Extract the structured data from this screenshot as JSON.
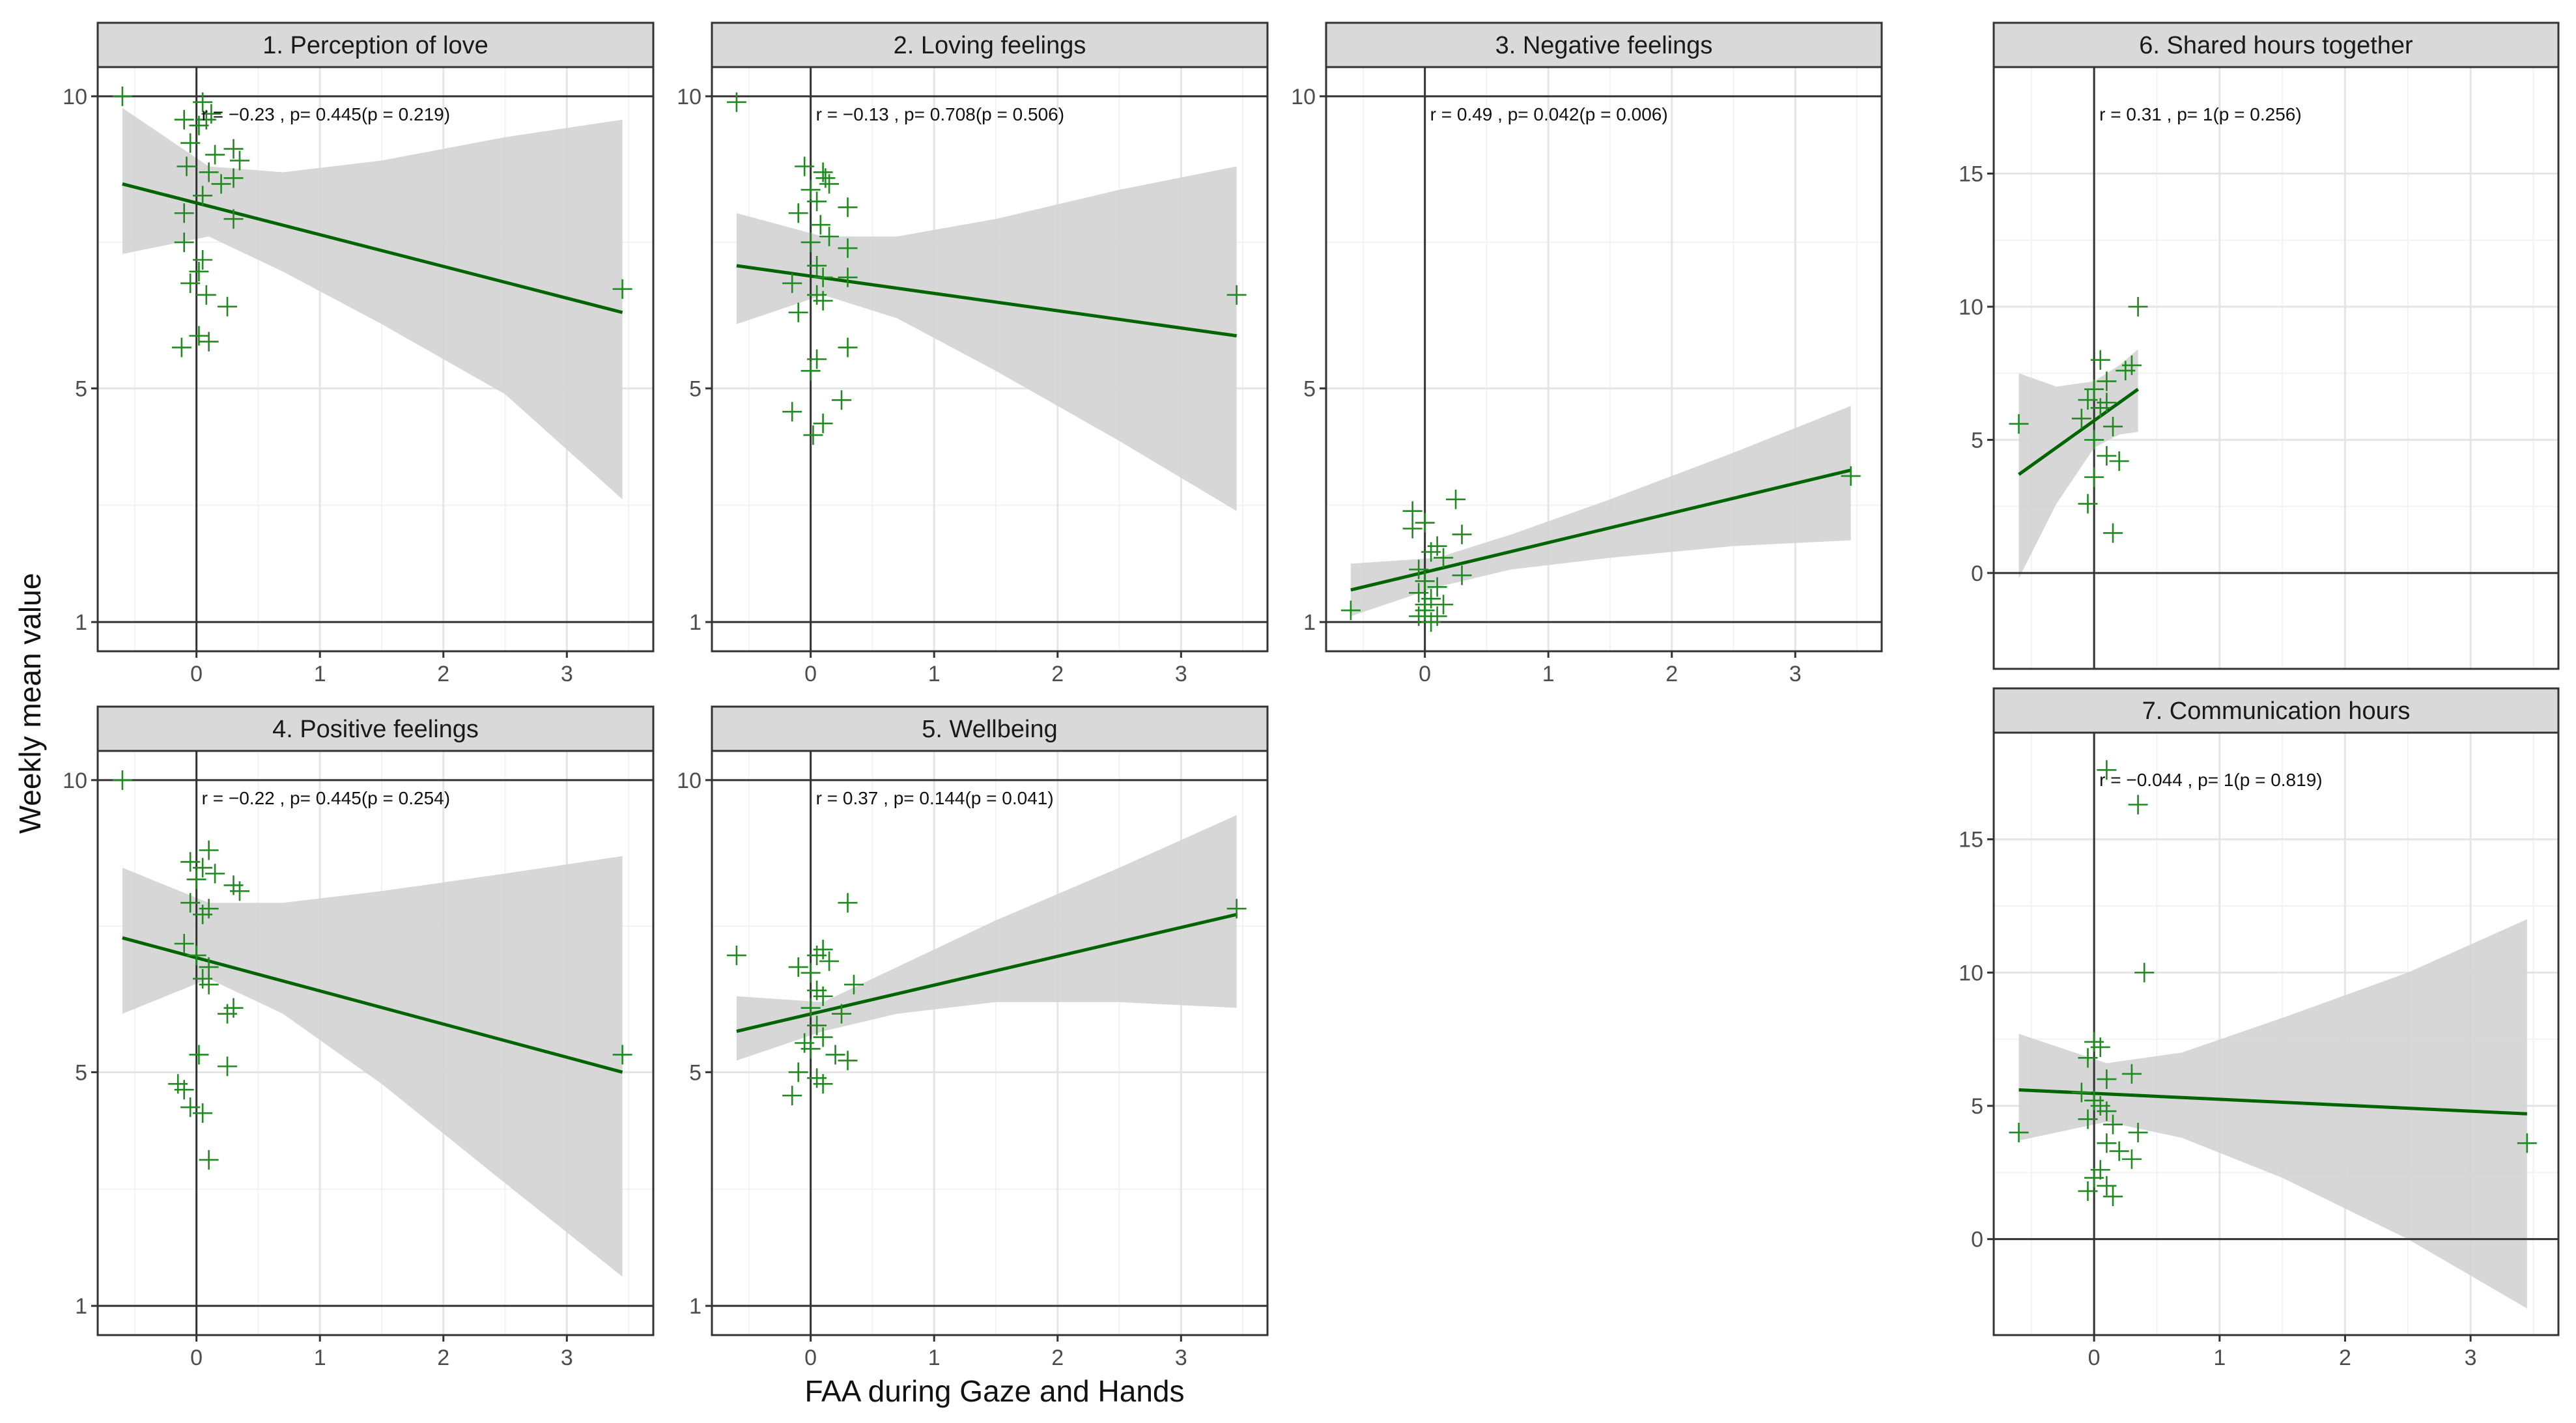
{
  "chart_data": {
    "type": "scatter",
    "xlabel": "FAA during Gaze and Hands",
    "ylabel": "Weekly mean value",
    "colors": {
      "points": "#1f8a1f",
      "line": "#006400",
      "ribbon": "#d3d3d3",
      "strip": "#d9d9d9",
      "ref_line": "#333333"
    },
    "panels": [
      {
        "title": "1. Perception of love",
        "annotation": "r = −0.23 , p= 0.445(p = 0.219)",
        "xlim": [
          -0.8,
          3.7
        ],
        "ylim": [
          0.5,
          10.5
        ],
        "xticks": [
          0,
          1,
          2,
          3
        ],
        "yticks": [
          1,
          5,
          10
        ],
        "hline": 1,
        "hline_top": 10,
        "line": {
          "x": [
            -0.6,
            3.45
          ],
          "y": [
            8.5,
            6.3
          ]
        },
        "ribbon_upper": [
          [
            -0.6,
            9.8
          ],
          [
            0.1,
            8.8
          ],
          [
            0.7,
            8.7
          ],
          [
            1.5,
            8.9
          ],
          [
            2.5,
            9.3
          ],
          [
            3.45,
            9.6
          ]
        ],
        "ribbon_lower": [
          [
            -0.6,
            7.3
          ],
          [
            0.1,
            7.6
          ],
          [
            0.7,
            7.0
          ],
          [
            1.5,
            6.1
          ],
          [
            2.5,
            4.9
          ],
          [
            3.45,
            3.1
          ]
        ],
        "points": [
          [
            -0.6,
            10.0
          ],
          [
            -0.1,
            9.6
          ],
          [
            0.02,
            9.5
          ],
          [
            0.05,
            9.9
          ],
          [
            0.08,
            9.6
          ],
          [
            0.12,
            9.7
          ],
          [
            -0.05,
            9.2
          ],
          [
            0.15,
            9.0
          ],
          [
            0.3,
            9.1
          ],
          [
            0.35,
            8.9
          ],
          [
            -0.08,
            8.8
          ],
          [
            0.1,
            8.7
          ],
          [
            0.2,
            8.5
          ],
          [
            0.3,
            8.6
          ],
          [
            0.05,
            8.3
          ],
          [
            -0.1,
            8.0
          ],
          [
            0.3,
            7.9
          ],
          [
            -0.1,
            7.5
          ],
          [
            0.05,
            7.2
          ],
          [
            0.02,
            7.0
          ],
          [
            -0.05,
            6.8
          ],
          [
            0.08,
            6.6
          ],
          [
            0.25,
            6.4
          ],
          [
            0.02,
            5.9
          ],
          [
            0.1,
            5.8
          ],
          [
            -0.12,
            5.7
          ],
          [
            3.45,
            6.7
          ]
        ]
      },
      {
        "title": "2. Loving feelings",
        "annotation": "r = −0.13 , p= 0.708(p = 0.506)",
        "xlim": [
          -0.8,
          3.7
        ],
        "ylim": [
          0.5,
          10.5
        ],
        "xticks": [
          0,
          1,
          2,
          3
        ],
        "yticks": [
          1,
          5,
          10
        ],
        "hline": 1,
        "hline_top": 10,
        "line": {
          "x": [
            -0.6,
            3.45
          ],
          "y": [
            7.1,
            5.9
          ]
        },
        "ribbon_upper": [
          [
            -0.6,
            8.0
          ],
          [
            0.1,
            7.6
          ],
          [
            0.7,
            7.6
          ],
          [
            1.5,
            7.9
          ],
          [
            2.5,
            8.4
          ],
          [
            3.45,
            8.8
          ]
        ],
        "ribbon_lower": [
          [
            -0.6,
            6.1
          ],
          [
            0.1,
            6.6
          ],
          [
            0.7,
            6.2
          ],
          [
            1.5,
            5.3
          ],
          [
            2.5,
            4.1
          ],
          [
            3.45,
            2.9
          ]
        ],
        "points": [
          [
            -0.6,
            9.9
          ],
          [
            -0.05,
            8.8
          ],
          [
            0.1,
            8.7
          ],
          [
            0.12,
            8.6
          ],
          [
            0.0,
            8.4
          ],
          [
            0.15,
            8.5
          ],
          [
            0.05,
            8.2
          ],
          [
            -0.1,
            8.0
          ],
          [
            0.3,
            8.1
          ],
          [
            0.08,
            7.8
          ],
          [
            0.15,
            7.6
          ],
          [
            0.0,
            7.5
          ],
          [
            0.3,
            7.4
          ],
          [
            0.05,
            7.1
          ],
          [
            0.1,
            6.9
          ],
          [
            -0.15,
            6.8
          ],
          [
            0.3,
            6.9
          ],
          [
            0.05,
            6.6
          ],
          [
            0.1,
            6.5
          ],
          [
            -0.1,
            6.3
          ],
          [
            0.3,
            5.7
          ],
          [
            0.05,
            5.5
          ],
          [
            0.0,
            5.3
          ],
          [
            -0.15,
            4.6
          ],
          [
            0.25,
            4.8
          ],
          [
            0.1,
            4.4
          ],
          [
            0.02,
            4.2
          ],
          [
            3.45,
            6.6
          ]
        ]
      },
      {
        "title": "3. Negative feelings",
        "annotation": "r = 0.49 , p= 0.042(p = 0.006)",
        "xlim": [
          -0.8,
          3.7
        ],
        "ylim": [
          0.5,
          10.5
        ],
        "xticks": [
          0,
          1,
          2,
          3
        ],
        "yticks": [
          1,
          5,
          10
        ],
        "hline": 1,
        "hline_top": 10,
        "line": {
          "x": [
            -0.6,
            3.45
          ],
          "y": [
            1.55,
            3.6
          ]
        },
        "ribbon_upper": [
          [
            -0.6,
            2.0
          ],
          [
            0.1,
            2.1
          ],
          [
            0.7,
            2.5
          ],
          [
            1.5,
            3.1
          ],
          [
            2.5,
            3.9
          ],
          [
            3.45,
            4.7
          ]
        ],
        "ribbon_lower": [
          [
            -0.6,
            1.1
          ],
          [
            0.1,
            1.6
          ],
          [
            0.7,
            1.9
          ],
          [
            1.5,
            2.1
          ],
          [
            2.5,
            2.3
          ],
          [
            3.45,
            2.4
          ]
        ],
        "points": [
          [
            -0.6,
            1.2
          ],
          [
            -0.1,
            2.9
          ],
          [
            -0.1,
            2.6
          ],
          [
            0.25,
            3.1
          ],
          [
            0.0,
            2.7
          ],
          [
            0.3,
            2.5
          ],
          [
            0.1,
            2.3
          ],
          [
            0.05,
            2.2
          ],
          [
            0.15,
            2.1
          ],
          [
            -0.05,
            1.9
          ],
          [
            0.3,
            1.8
          ],
          [
            0.0,
            1.7
          ],
          [
            0.1,
            1.6
          ],
          [
            -0.05,
            1.5
          ],
          [
            0.05,
            1.4
          ],
          [
            0.15,
            1.3
          ],
          [
            0.0,
            1.2
          ],
          [
            -0.05,
            1.1
          ],
          [
            0.1,
            1.1
          ],
          [
            0.05,
            1.0
          ],
          [
            0.0,
            1.3
          ],
          [
            3.45,
            3.5
          ]
        ]
      },
      {
        "title": "4. Positive feelings",
        "annotation": "r = −0.22 , p= 0.445(p = 0.254)",
        "xlim": [
          -0.8,
          3.7
        ],
        "ylim": [
          0.5,
          10.5
        ],
        "xticks": [
          0,
          1,
          2,
          3
        ],
        "yticks": [
          1,
          5,
          10
        ],
        "hline": 1,
        "hline_top": 10,
        "line": {
          "x": [
            -0.6,
            3.45
          ],
          "y": [
            7.3,
            5.0
          ]
        },
        "ribbon_upper": [
          [
            -0.6,
            8.5
          ],
          [
            0.1,
            7.9
          ],
          [
            0.7,
            7.9
          ],
          [
            1.5,
            8.1
          ],
          [
            2.5,
            8.4
          ],
          [
            3.45,
            8.7
          ]
        ],
        "ribbon_lower": [
          [
            -0.6,
            6.0
          ],
          [
            0.1,
            6.6
          ],
          [
            0.7,
            6.0
          ],
          [
            1.5,
            4.8
          ],
          [
            2.5,
            3.1
          ],
          [
            3.45,
            1.5
          ]
        ],
        "points": [
          [
            -0.6,
            10.0
          ],
          [
            0.1,
            8.8
          ],
          [
            -0.05,
            8.6
          ],
          [
            0.05,
            8.5
          ],
          [
            0.15,
            8.4
          ],
          [
            0.0,
            8.3
          ],
          [
            0.3,
            8.2
          ],
          [
            0.35,
            8.1
          ],
          [
            -0.05,
            7.9
          ],
          [
            0.1,
            7.8
          ],
          [
            0.05,
            7.7
          ],
          [
            -0.1,
            7.2
          ],
          [
            0.0,
            7.0
          ],
          [
            0.1,
            6.8
          ],
          [
            0.05,
            6.6
          ],
          [
            0.1,
            6.5
          ],
          [
            0.3,
            6.1
          ],
          [
            0.25,
            6.0
          ],
          [
            0.02,
            5.3
          ],
          [
            0.25,
            5.1
          ],
          [
            -0.15,
            4.8
          ],
          [
            -0.1,
            4.7
          ],
          [
            -0.05,
            4.4
          ],
          [
            0.05,
            4.3
          ],
          [
            0.1,
            3.5
          ],
          [
            3.45,
            5.3
          ]
        ]
      },
      {
        "title": "5. Wellbeing",
        "annotation": "r = 0.37 , p= 0.144(p = 0.041)",
        "xlim": [
          -0.8,
          3.7
        ],
        "ylim": [
          0.5,
          10.5
        ],
        "xticks": [
          0,
          1,
          2,
          3
        ],
        "yticks": [
          1,
          5,
          10
        ],
        "hline": 1,
        "hline_top": 10,
        "line": {
          "x": [
            -0.6,
            3.45
          ],
          "y": [
            5.7,
            7.7
          ]
        },
        "ribbon_upper": [
          [
            -0.6,
            6.3
          ],
          [
            0.1,
            6.2
          ],
          [
            0.7,
            6.8
          ],
          [
            1.5,
            7.6
          ],
          [
            2.5,
            8.5
          ],
          [
            3.45,
            9.4
          ]
        ],
        "ribbon_lower": [
          [
            -0.6,
            5.2
          ],
          [
            0.1,
            5.7
          ],
          [
            0.7,
            6.0
          ],
          [
            1.5,
            6.2
          ],
          [
            2.5,
            6.2
          ],
          [
            3.45,
            6.1
          ]
        ],
        "points": [
          [
            -0.6,
            7.0
          ],
          [
            0.3,
            7.9
          ],
          [
            0.1,
            7.1
          ],
          [
            0.05,
            7.0
          ],
          [
            0.15,
            6.9
          ],
          [
            -0.1,
            6.8
          ],
          [
            0.0,
            6.7
          ],
          [
            0.35,
            6.5
          ],
          [
            0.05,
            6.4
          ],
          [
            0.1,
            6.3
          ],
          [
            0.0,
            6.1
          ],
          [
            0.25,
            6.0
          ],
          [
            0.05,
            5.8
          ],
          [
            0.1,
            5.6
          ],
          [
            -0.05,
            5.5
          ],
          [
            0.0,
            5.4
          ],
          [
            0.2,
            5.3
          ],
          [
            0.3,
            5.2
          ],
          [
            -0.1,
            5.0
          ],
          [
            0.05,
            4.9
          ],
          [
            -0.15,
            4.6
          ],
          [
            0.1,
            4.8
          ],
          [
            3.45,
            7.8
          ]
        ]
      },
      {
        "title": "6. Shared hours together",
        "annotation": "r = 0.31 , p= 1(p = 0.256)",
        "xlim": [
          -0.8,
          3.7
        ],
        "ylim": [
          -3.6,
          19.0
        ],
        "xticks": [],
        "yticks": [
          0,
          5,
          10,
          15
        ],
        "hline": 0,
        "hline_top": null,
        "line": {
          "x": [
            -0.6,
            0.35
          ],
          "y": [
            3.7,
            6.9
          ]
        },
        "ribbon_upper": [
          [
            -0.6,
            7.5
          ],
          [
            -0.3,
            7.0
          ],
          [
            0.0,
            7.2
          ],
          [
            0.2,
            7.8
          ],
          [
            0.35,
            8.4
          ]
        ],
        "ribbon_lower": [
          [
            -0.6,
            -0.2
          ],
          [
            -0.3,
            2.6
          ],
          [
            0.0,
            4.7
          ],
          [
            0.2,
            5.2
          ],
          [
            0.35,
            5.3
          ]
        ],
        "points": [
          [
            -0.6,
            5.6
          ],
          [
            0.35,
            10.0
          ],
          [
            0.05,
            8.0
          ],
          [
            0.3,
            7.8
          ],
          [
            0.25,
            7.6
          ],
          [
            0.1,
            7.2
          ],
          [
            0.0,
            6.9
          ],
          [
            -0.05,
            6.5
          ],
          [
            0.1,
            6.4
          ],
          [
            0.05,
            6.2
          ],
          [
            -0.1,
            5.8
          ],
          [
            0.15,
            5.5
          ],
          [
            0.0,
            5.0
          ],
          [
            0.1,
            4.4
          ],
          [
            0.2,
            4.2
          ],
          [
            0.0,
            3.6
          ],
          [
            -0.05,
            2.6
          ],
          [
            0.15,
            1.5
          ]
        ]
      },
      {
        "title": "7. Communication hours",
        "annotation": "r = −0.044 , p= 1(p = 0.819)",
        "xlim": [
          -0.8,
          3.7
        ],
        "ylim": [
          -3.6,
          19.0
        ],
        "xticks": [
          0,
          1,
          2,
          3
        ],
        "yticks": [
          0,
          5,
          10,
          15
        ],
        "hline": 0,
        "hline_top": null,
        "line": {
          "x": [
            -0.6,
            3.45
          ],
          "y": [
            5.6,
            4.7
          ]
        },
        "ribbon_upper": [
          [
            -0.6,
            7.7
          ],
          [
            0.1,
            6.6
          ],
          [
            0.7,
            7.0
          ],
          [
            1.5,
            8.3
          ],
          [
            2.5,
            10.0
          ],
          [
            3.45,
            12.0
          ]
        ],
        "ribbon_lower": [
          [
            -0.6,
            3.7
          ],
          [
            0.1,
            4.4
          ],
          [
            0.7,
            3.8
          ],
          [
            1.5,
            2.3
          ],
          [
            2.5,
            0.0
          ],
          [
            3.45,
            -2.6
          ]
        ],
        "points": [
          [
            0.1,
            17.6
          ],
          [
            0.35,
            16.3
          ],
          [
            0.4,
            10.0
          ],
          [
            0.0,
            7.4
          ],
          [
            0.05,
            7.2
          ],
          [
            -0.05,
            6.8
          ],
          [
            0.3,
            6.2
          ],
          [
            0.1,
            6.0
          ],
          [
            -0.1,
            5.5
          ],
          [
            0.0,
            5.2
          ],
          [
            0.05,
            5.0
          ],
          [
            0.1,
            4.8
          ],
          [
            -0.05,
            4.5
          ],
          [
            0.15,
            4.3
          ],
          [
            -0.6,
            4.0
          ],
          [
            0.35,
            4.0
          ],
          [
            0.1,
            3.6
          ],
          [
            0.2,
            3.3
          ],
          [
            0.3,
            3.0
          ],
          [
            0.05,
            2.6
          ],
          [
            0.0,
            2.3
          ],
          [
            0.1,
            2.0
          ],
          [
            -0.05,
            1.8
          ],
          [
            0.15,
            1.6
          ],
          [
            3.45,
            3.6
          ]
        ]
      }
    ]
  }
}
